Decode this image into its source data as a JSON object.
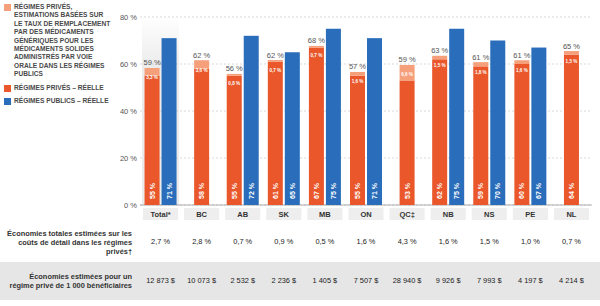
{
  "chart_data": {
    "type": "bar",
    "categories": [
      "Total*",
      "BC",
      "AB",
      "SK",
      "MB",
      "ON",
      "QC‡",
      "NB",
      "NS",
      "PE",
      "NL"
    ],
    "series": [
      {
        "name": "RÉGIMES PRIVÉS – RÉELLE",
        "color": "#e9572b",
        "stacked": true,
        "values": [
          55,
          58,
          55,
          61,
          67,
          55,
          53,
          62,
          59,
          60,
          64
        ],
        "value_labels": [
          "55 %",
          "58 %",
          "55 %",
          "61 %",
          "67 %",
          "55 %",
          "53 %",
          "62 %",
          "59 %",
          "60 %",
          "64 %"
        ]
      },
      {
        "name": "RÉGIMES PRIVÉS, ESTIMATIONS BASÉES SUR LE TAUX DE REMPLACEMENT PAR DES MÉDICAMENTS GÉNÉRIQUES POUR LES MÉDICAMENTS SOLIDES ADMINISTRÉS PAR VOIE ORALE DANS LES RÉGIMES PUBLICS",
        "color": "#f5a07a",
        "stacked": true,
        "values": [
          3.3,
          3.6,
          0.8,
          0.7,
          0.7,
          1.6,
          6.6,
          1.5,
          1.8,
          1.6,
          1.5
        ],
        "value_labels": [
          "3,3 %",
          "3,6 %",
          "0,8 %",
          "0,7 %",
          "0,7 %",
          "1,6 %",
          "6,6 %",
          "1,5 %",
          "1,8 %",
          "1,6 %",
          "1,5 %"
        ]
      },
      {
        "name": "RÉGIMES PUBLICS – RÉELLE",
        "color": "#2a6ebb",
        "values": [
          71,
          null,
          72,
          65,
          75,
          71,
          null,
          75,
          70,
          67,
          null
        ],
        "value_labels": [
          "71 %",
          null,
          "72 %",
          "65 %",
          "75 %",
          "71 %",
          null,
          "75 %",
          "70 %",
          "67 %",
          null
        ]
      }
    ],
    "annotations": [
      "59 %",
      "62 %",
      "56 %",
      "62 %",
      "68 %",
      "57 %",
      "59 %",
      "63 %",
      "61 %",
      "61 %",
      "65 %"
    ],
    "ylim": [
      0,
      80
    ],
    "yticks": [
      {
        "value": 0,
        "label": "0 %"
      },
      {
        "value": 20,
        "label": "20 %"
      },
      {
        "value": 40,
        "label": "40 %"
      },
      {
        "value": 60,
        "label": "60 %"
      },
      {
        "value": 80,
        "label": "80 %"
      }
    ],
    "grid": true,
    "data_labels": true
  },
  "table": {
    "rows": [
      {
        "label": "Économies totales estimées sur les coûts de détail dans les régimes privés†",
        "values": [
          "2,7 %",
          "2,8 %",
          "0,7 %",
          "0,9 %",
          "0,5 %",
          "1,6 %",
          "4,3 %",
          "1,6 %",
          "1,5 %",
          "1,0 %",
          "0,7 %"
        ]
      },
      {
        "label": "Économies estimées pour un régime privé de 1 000 bénéficiaires",
        "values": [
          "12 873 $",
          "10 073 $",
          "2 532 $",
          "2 236 $",
          "1 405 $",
          "7 507 $",
          "28 940 $",
          "9 926 $",
          "7 993 $",
          "4 197 $",
          "4 214 $"
        ]
      }
    ]
  }
}
